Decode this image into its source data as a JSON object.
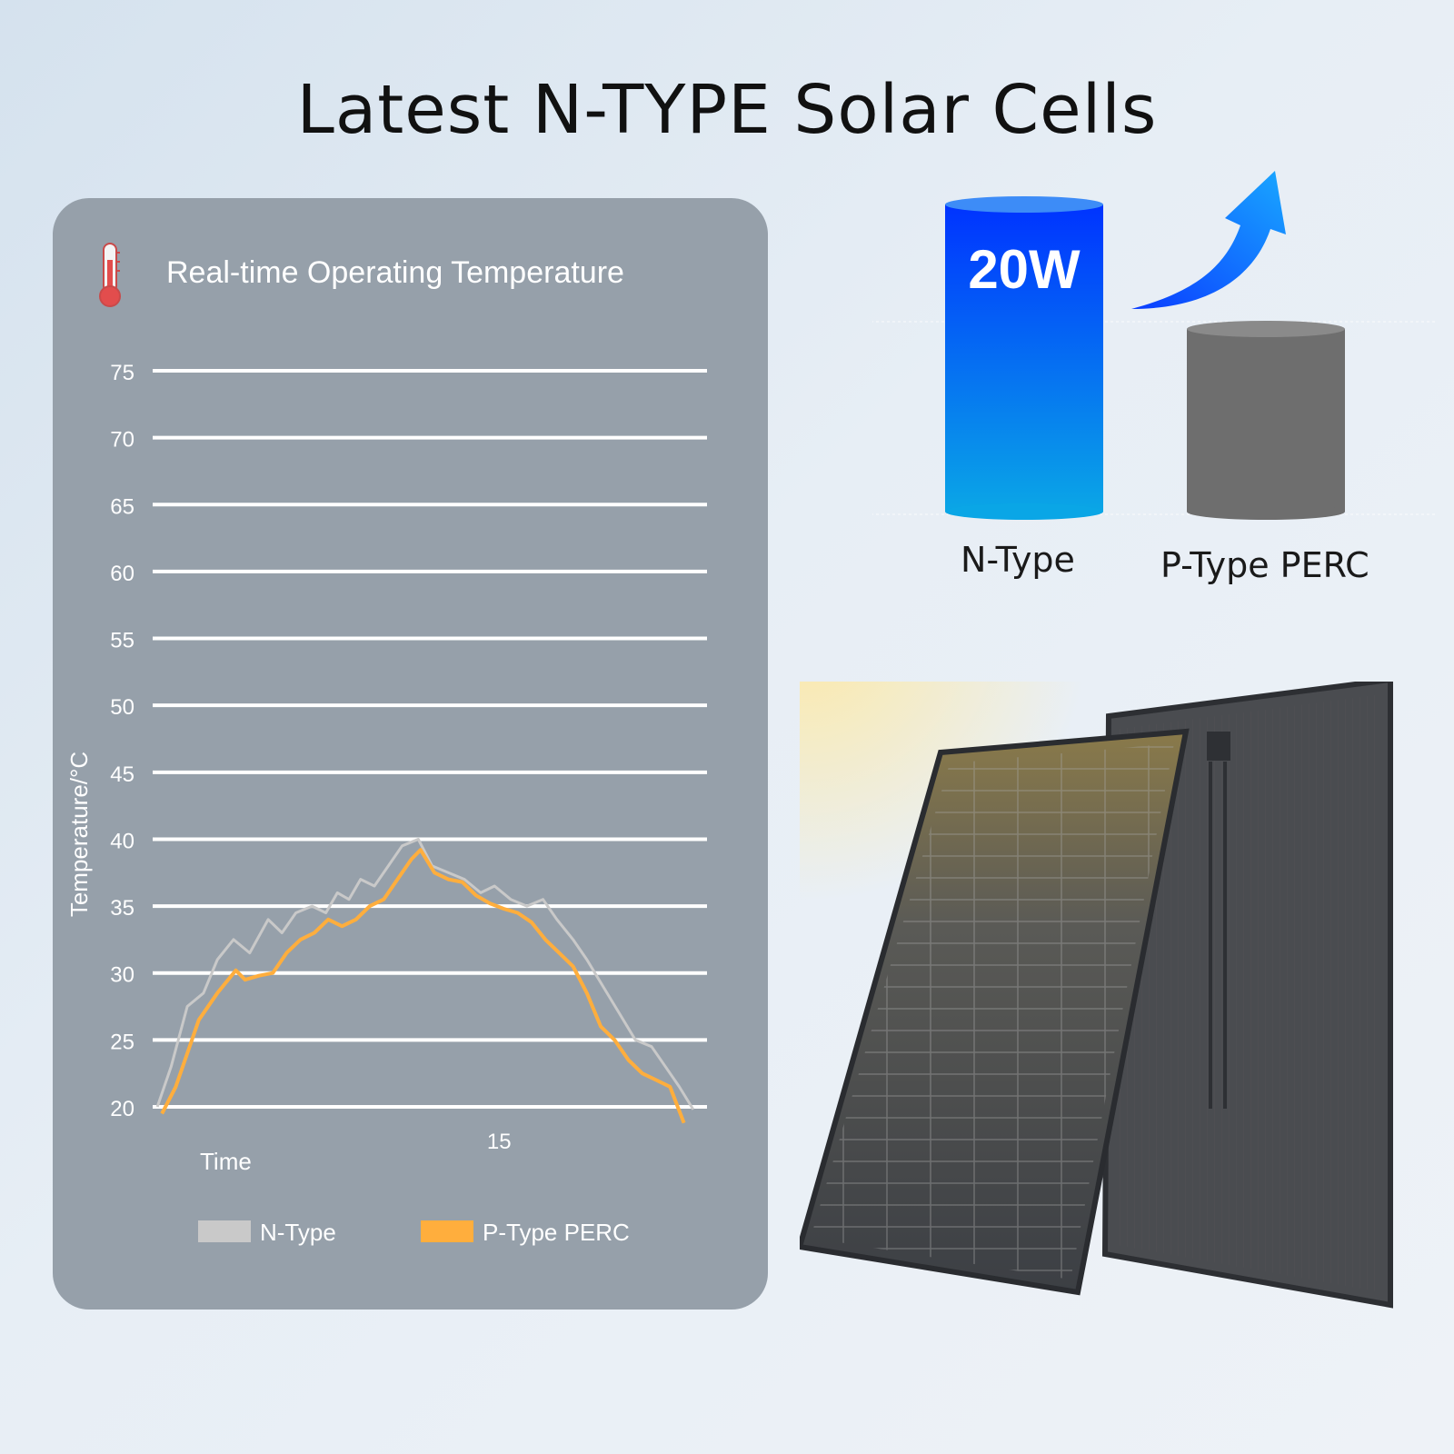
{
  "title": "Latest N-TYPE Solar Cells",
  "temperature_panel": {
    "icon": "thermometer-icon",
    "colors": {
      "panel_bg": "#96a0aa",
      "n_type": "#c9c9c9",
      "p_type": "#ffae3d",
      "grid": "#ffffff"
    }
  },
  "comparison": {
    "badge": "20W",
    "n_label": "N-Type",
    "p_label": "P-Type PERC",
    "arrow_icon": "up-arrow-icon",
    "colors": {
      "n_top": "#0033ff",
      "n_bottom": "#0aa6e6",
      "p_body": "#6e6e6e"
    }
  },
  "chart_data": {
    "type": "line",
    "title": "Real-time Operating Temperature",
    "xlabel": "Time",
    "ylabel": "Temperature/°C",
    "x_tick_labels": [
      {
        "x": 15,
        "label": "15"
      }
    ],
    "xlim": [
      0,
      24
    ],
    "ylim": [
      20,
      75
    ],
    "yticks": [
      20,
      25,
      30,
      35,
      40,
      45,
      50,
      55,
      60,
      65,
      70,
      75
    ],
    "grid": true,
    "legend": "bottom",
    "series": [
      {
        "name": "N-Type",
        "color": "#c9c9c9",
        "x": [
          0.2,
          0.8,
          1.5,
          2.2,
          2.8,
          3.5,
          4.2,
          5.0,
          5.6,
          6.2,
          6.9,
          7.5,
          8.0,
          8.5,
          9.0,
          9.6,
          10.2,
          10.8,
          11.5,
          12.1,
          12.8,
          13.5,
          14.2,
          14.8,
          15.5,
          16.2,
          16.9,
          17.5,
          18.2,
          18.8,
          19.5,
          20.2,
          20.9,
          21.6,
          22.2,
          22.8,
          23.4
        ],
        "y": [
          20.0,
          23.0,
          27.5,
          28.5,
          31.0,
          32.5,
          31.5,
          34.0,
          33.0,
          34.5,
          35.0,
          34.5,
          36.0,
          35.5,
          37.0,
          36.5,
          38.0,
          39.5,
          40.0,
          38.0,
          37.5,
          37.0,
          36.0,
          36.5,
          35.5,
          35.0,
          35.5,
          34.0,
          32.5,
          31.0,
          29.0,
          27.0,
          25.0,
          24.5,
          23.0,
          21.5,
          19.8
        ]
      },
      {
        "name": "P-Type PERC",
        "color": "#ffae3d",
        "x": [
          0.4,
          1.0,
          1.5,
          2.0,
          2.8,
          3.6,
          4.0,
          4.6,
          5.2,
          5.8,
          6.4,
          7.0,
          7.6,
          8.2,
          8.8,
          9.4,
          10.0,
          10.6,
          11.2,
          11.6,
          12.2,
          12.8,
          13.4,
          14.0,
          14.6,
          15.2,
          15.8,
          16.4,
          17.0,
          17.6,
          18.2,
          18.8,
          19.4,
          20.0,
          20.6,
          21.2,
          21.8,
          22.4,
          23.0
        ],
        "y": [
          19.5,
          21.5,
          24.0,
          26.5,
          28.5,
          30.2,
          29.5,
          29.8,
          30.0,
          31.5,
          32.5,
          33.0,
          34.0,
          33.5,
          34.0,
          35.0,
          35.5,
          37.0,
          38.5,
          39.2,
          37.5,
          37.0,
          36.8,
          35.8,
          35.2,
          34.8,
          34.5,
          33.8,
          32.5,
          31.5,
          30.5,
          28.5,
          26.0,
          25.0,
          23.5,
          22.5,
          22.0,
          21.5,
          18.8
        ]
      }
    ]
  }
}
